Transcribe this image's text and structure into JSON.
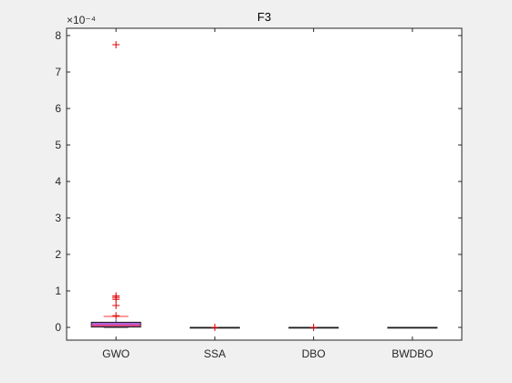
{
  "chart_data": {
    "type": "box",
    "title": "F3",
    "xlabel": "",
    "ylabel": "",
    "exponent_label": "×10⁻⁴",
    "categories": [
      "GWO",
      "SSA",
      "DBO",
      "BWDBO"
    ],
    "ylim": [
      -0.35,
      8.2
    ],
    "yticks": [
      0,
      1,
      2,
      3,
      4,
      5,
      6,
      7,
      8
    ],
    "ytick_labels": [
      "0",
      "1",
      "2",
      "3",
      "4",
      "5",
      "6",
      "7",
      "8"
    ],
    "grid": false,
    "scale_factor": 0.0001,
    "boxes": [
      {
        "category": "GWO",
        "whisker_low": 0.0,
        "q1": 0.01,
        "median": 0.05,
        "q3": 0.14,
        "whisker_high": 0.3,
        "outliers": [
          0.32,
          0.6,
          0.77,
          0.82,
          0.86,
          7.75
        ]
      },
      {
        "category": "SSA",
        "whisker_low": 0.0,
        "q1": 0.0,
        "median": 0.0,
        "q3": 0.0,
        "whisker_high": 0.0,
        "outliers": [
          0.0
        ]
      },
      {
        "category": "DBO",
        "whisker_low": 0.0,
        "q1": 0.0,
        "median": 0.0,
        "q3": 0.0,
        "whisker_high": 0.0,
        "outliers": [
          0.0
        ]
      },
      {
        "category": "BWDBO",
        "whisker_low": 0.0,
        "q1": 0.0,
        "median": 0.0,
        "q3": 0.0,
        "whisker_high": 0.0,
        "outliers": []
      }
    ],
    "colors": {
      "box_fill": "#b060d8",
      "box_edge": "#1a1a1a",
      "median": "#ff3030",
      "whisker": "#4040ff",
      "outlier": "#e00000",
      "axes": "#262626",
      "background": "#ffffff"
    }
  }
}
